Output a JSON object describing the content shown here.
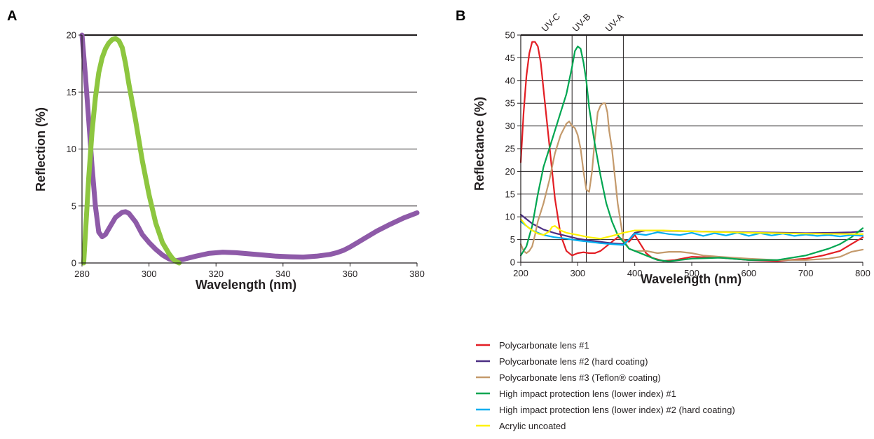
{
  "chart_data": [
    {
      "panel": "A",
      "type": "line",
      "xlabel": "Wavelength (nm)",
      "ylabel": "Reflection (%)",
      "xlim": [
        280,
        380
      ],
      "ylim": [
        0,
        20
      ],
      "xticks": [
        280,
        300,
        320,
        340,
        360,
        380
      ],
      "yticks": [
        0,
        5,
        10,
        15,
        20
      ],
      "grid": "horizontal",
      "series": [
        {
          "color": "#8e5aa8",
          "x": [
            280,
            281,
            282,
            283,
            284,
            285,
            286,
            287,
            288,
            290,
            292,
            293,
            294,
            296,
            298,
            300,
            302,
            304,
            306,
            308,
            310,
            314,
            318,
            322,
            326,
            330,
            334,
            338,
            342,
            346,
            350,
            354,
            356,
            358,
            360,
            364,
            368,
            372,
            376,
            380
          ],
          "values": [
            20,
            16.5,
            12.5,
            8.5,
            5.0,
            2.7,
            2.3,
            2.5,
            3.0,
            4.0,
            4.45,
            4.5,
            4.35,
            3.6,
            2.5,
            1.8,
            1.2,
            0.7,
            0.35,
            0.2,
            0.3,
            0.6,
            0.85,
            0.95,
            0.9,
            0.8,
            0.7,
            0.6,
            0.55,
            0.52,
            0.6,
            0.75,
            0.9,
            1.1,
            1.4,
            2.1,
            2.8,
            3.4,
            3.95,
            4.4
          ]
        },
        {
          "color": "#8dc63f",
          "x": [
            280.5,
            281,
            282,
            283,
            284,
            285,
            286,
            287,
            288,
            289,
            290,
            291,
            292,
            293,
            294,
            296,
            298,
            300,
            302,
            304,
            306,
            307,
            308,
            309
          ],
          "values": [
            0,
            2.5,
            7.5,
            11.5,
            14.5,
            16.7,
            18.0,
            18.8,
            19.3,
            19.6,
            19.7,
            19.5,
            18.9,
            17.5,
            15.7,
            12.5,
            9.0,
            6.0,
            3.5,
            1.8,
            0.8,
            0.4,
            0.15,
            0
          ]
        }
      ]
    },
    {
      "panel": "B",
      "type": "line",
      "xlabel": "Wavelength (nm)",
      "ylabel": "Reflectance (%)",
      "xlim": [
        200,
        800
      ],
      "ylim": [
        0,
        50
      ],
      "xticks": [
        200,
        300,
        400,
        500,
        600,
        700,
        800
      ],
      "yticks": [
        0,
        5,
        10,
        15,
        20,
        25,
        30,
        35,
        40,
        45,
        50
      ],
      "grid": "horizontal",
      "regions": [
        {
          "label": "UV-C",
          "boundary": 290
        },
        {
          "label": "UV-B",
          "boundary": 315
        },
        {
          "label": "UV-A",
          "boundary": 380
        }
      ],
      "legend_position": "bottom",
      "series": [
        {
          "name": "Polycarbonate lens #1",
          "color": "#e31e24",
          "x": [
            200,
            205,
            210,
            215,
            220,
            225,
            230,
            235,
            240,
            250,
            260,
            270,
            280,
            290,
            300,
            310,
            320,
            330,
            340,
            350,
            360,
            370,
            380,
            390,
            400,
            410,
            420,
            430,
            450,
            470,
            500,
            550,
            600,
            650,
            700,
            730,
            760,
            780,
            800
          ],
          "values": [
            22,
            33,
            41,
            46,
            48.5,
            48.5,
            47.5,
            44,
            38,
            26,
            14,
            6,
            2.5,
            1.5,
            2,
            2.2,
            2,
            2,
            2.5,
            3.5,
            4.5,
            5.5,
            5,
            4.5,
            6,
            4,
            2,
            1,
            0.3,
            0.5,
            1.2,
            1,
            0.5,
            0.3,
            0.8,
            1.5,
            2.5,
            4,
            5.5
          ]
        },
        {
          "name": "Polycarbonate lens #2 (hard coating)",
          "color": "#4b2e83",
          "x": [
            200,
            220,
            240,
            260,
            280,
            300,
            320,
            340,
            360,
            380,
            390,
            400,
            420,
            500,
            600,
            660,
            700,
            750,
            780,
            800
          ],
          "values": [
            10.5,
            8.5,
            7.2,
            6.4,
            5.8,
            5.2,
            4.8,
            4.5,
            4.2,
            4.0,
            5.0,
            6.5,
            7.0,
            6.8,
            6.6,
            6.5,
            6.4,
            6.5,
            6.6,
            6.8
          ]
        },
        {
          "name": "Polycarbonate lens #3 (Teflon® coating)",
          "color": "#c49a6c",
          "x": [
            200,
            205,
            210,
            215,
            220,
            225,
            230,
            240,
            250,
            260,
            270,
            280,
            285,
            290,
            295,
            300,
            305,
            310,
            315,
            320,
            325,
            330,
            335,
            340,
            345,
            348,
            352,
            355,
            360,
            365,
            370,
            380,
            390,
            400,
            420,
            440,
            460,
            480,
            500,
            520,
            550,
            600,
            650,
            700,
            740,
            760,
            780,
            800
          ],
          "values": [
            4,
            2.5,
            2,
            2.5,
            3.5,
            6,
            9,
            13,
            18,
            24,
            28,
            30.5,
            31,
            30,
            29.5,
            28,
            25,
            20,
            16,
            15.5,
            20,
            27,
            33,
            34.5,
            35,
            35,
            33,
            29,
            25,
            19,
            13,
            5,
            3,
            2.5,
            2.5,
            2,
            2.3,
            2.3,
            2.0,
            1.5,
            1.2,
            0.8,
            0.5,
            0.5,
            0.8,
            1.2,
            2.3,
            2.8
          ]
        },
        {
          "name": "High impact protection lens (lower index) #1",
          "color": "#00a651",
          "x": [
            200,
            210,
            220,
            230,
            240,
            250,
            260,
            270,
            280,
            290,
            295,
            300,
            305,
            310,
            315,
            320,
            330,
            340,
            350,
            360,
            370,
            380,
            390,
            400,
            420,
            440,
            460,
            500,
            550,
            600,
            650,
            700,
            740,
            760,
            780,
            800
          ],
          "values": [
            1.5,
            3.5,
            8,
            15,
            21,
            25,
            29,
            33,
            37,
            43,
            46.5,
            47.5,
            47,
            44,
            40,
            34,
            26,
            19,
            13,
            9,
            6,
            4.5,
            3,
            2.5,
            1.5,
            0.5,
            0.2,
            0.8,
            1.0,
            0.5,
            0.5,
            1.5,
            3,
            4,
            5.5,
            7.5
          ]
        },
        {
          "name": "High impact protection lens (lower index) #2 (hard coating)",
          "color": "#00aeef",
          "x": [
            200,
            220,
            240,
            260,
            280,
            300,
            320,
            340,
            360,
            380,
            390,
            400,
            420,
            440,
            460,
            480,
            500,
            520,
            540,
            560,
            580,
            600,
            620,
            640,
            660,
            680,
            700,
            720,
            740,
            760,
            780,
            800
          ],
          "values": [
            9,
            7,
            6,
            5.5,
            5.2,
            4.8,
            4.5,
            4.2,
            4.0,
            3.8,
            5,
            6.3,
            6.0,
            6.6,
            6.2,
            6.0,
            6.5,
            5.8,
            6.4,
            5.9,
            6.5,
            5.8,
            6.4,
            5.9,
            6.3,
            5.8,
            6.1,
            5.8,
            6.0,
            5.7,
            6.0,
            5.8
          ]
        },
        {
          "name": "Acrylic uncoated",
          "color": "#fff200",
          "x": [
            200,
            210,
            220,
            230,
            240,
            250,
            255,
            260,
            265,
            270,
            280,
            300,
            320,
            340,
            360,
            380,
            400,
            420,
            450,
            500,
            600,
            700,
            800
          ],
          "values": [
            9.5,
            8.0,
            7.0,
            6.3,
            6.0,
            6.8,
            7.8,
            8.0,
            7.5,
            7.0,
            6.5,
            6.0,
            5.5,
            5.2,
            5.8,
            6.5,
            7.0,
            7.0,
            7.0,
            6.8,
            6.5,
            6.3,
            6.2
          ]
        }
      ]
    }
  ],
  "panels": {
    "a": {
      "label": "A",
      "xlabel": "Wavelength (nm)",
      "ylabel": "Reflection (%)"
    },
    "b": {
      "label": "B",
      "xlabel": "Wavelength (nm)",
      "ylabel": "Reflectance (%)",
      "uvc": "UV-C",
      "uvb": "UV-B",
      "uva": "UV-A"
    }
  },
  "legend": [
    {
      "label": "Polycarbonate lens #1",
      "color": "#e31e24"
    },
    {
      "label": "Polycarbonate lens #2 (hard coating)",
      "color": "#4b2e83"
    },
    {
      "label": "Polycarbonate lens #3 (Teflon® coating)",
      "color": "#c49a6c"
    },
    {
      "label": "High impact protection lens (lower index) #1",
      "color": "#00a651"
    },
    {
      "label": "High impact protection lens (lower index) #2 (hard coating)",
      "color": "#00aeef"
    },
    {
      "label": "Acrylic uncoated",
      "color": "#fff200"
    }
  ]
}
